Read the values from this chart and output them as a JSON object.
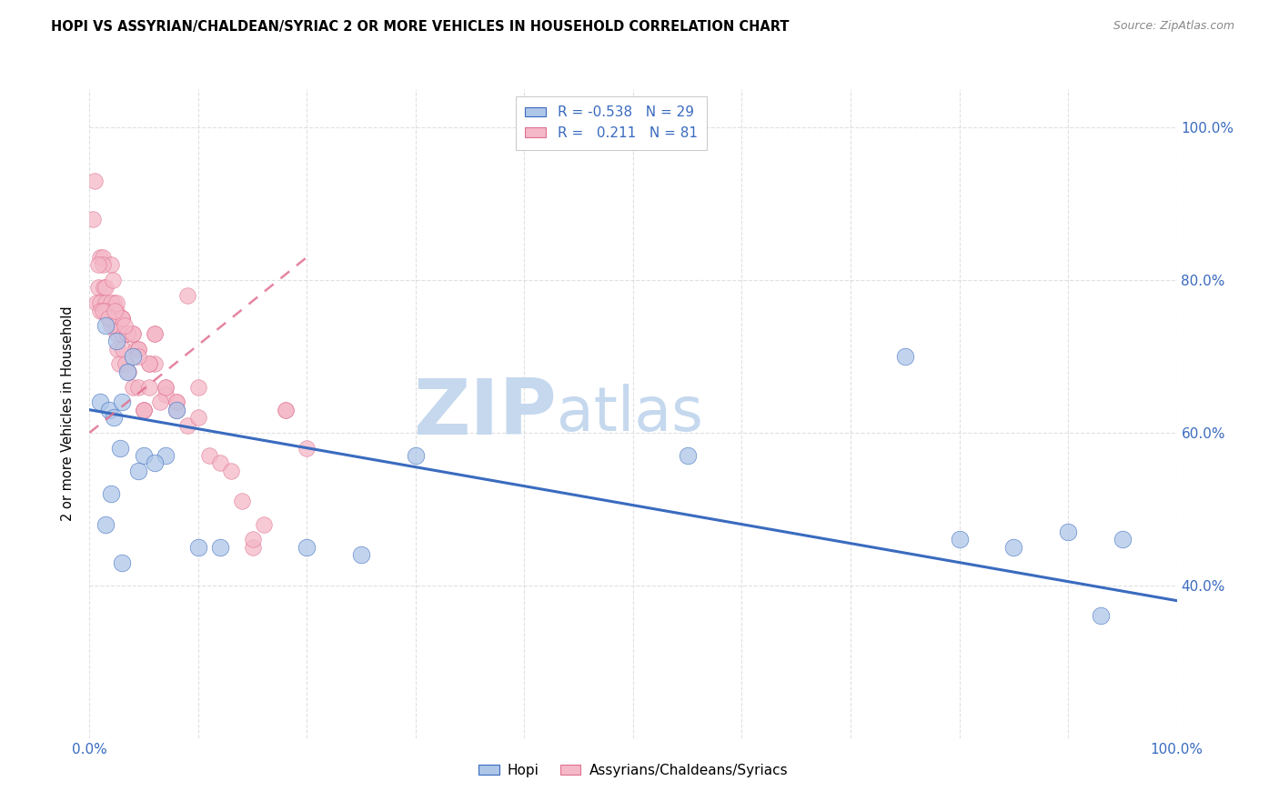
{
  "title": "HOPI VS ASSYRIAN/CHALDEAN/SYRIAC 2 OR MORE VEHICLES IN HOUSEHOLD CORRELATION CHART",
  "source_text": "Source: ZipAtlas.com",
  "ylabel": "2 or more Vehicles in Household",
  "xlim": [
    0,
    100
  ],
  "ylim": [
    20,
    105
  ],
  "legend_r_hopi": "-0.538",
  "legend_n_hopi": "29",
  "legend_r_assyrian": "0.211",
  "legend_n_assyrian": "81",
  "hopi_color": "#aec6e8",
  "assyrian_color": "#f4b8c8",
  "trend_hopi_color": "#3a6bbf",
  "trend_assyrian_color": "#e07090",
  "watermark_zip": "ZIP",
  "watermark_atlas": "atlas",
  "watermark_color_zip": "#c5d8ee",
  "watermark_color_atlas": "#c5d8ee",
  "hopi_trend_x0": 0,
  "hopi_trend_y0": 63,
  "hopi_trend_x1": 100,
  "hopi_trend_y1": 38,
  "assyrian_trend_x0": 0,
  "assyrian_trend_y0": 60,
  "assyrian_trend_x1": 20,
  "assyrian_trend_y1": 83,
  "hopi_x": [
    1.5,
    2.5,
    4.0,
    1.0,
    1.8,
    2.2,
    3.0,
    5.0,
    7.0,
    1.5,
    2.0,
    2.8,
    3.5,
    30.0,
    55.0,
    75.0,
    80.0,
    85.0,
    90.0,
    95.0,
    93.0,
    8.0,
    25.0,
    20.0,
    10.0,
    6.0,
    4.5,
    12.0,
    3.0
  ],
  "hopi_y": [
    74,
    72,
    70,
    64,
    63,
    62,
    64,
    57,
    57,
    48,
    52,
    58,
    68,
    57,
    57,
    70,
    46,
    45,
    47,
    46,
    36,
    63,
    44,
    45,
    45,
    56,
    55,
    45,
    43
  ],
  "assyrian_x": [
    0.5,
    0.8,
    1.0,
    1.2,
    1.3,
    1.5,
    1.6,
    1.8,
    2.0,
    2.1,
    2.2,
    2.3,
    2.5,
    2.6,
    2.7,
    3.0,
    3.1,
    3.3,
    3.5,
    3.6,
    4.0,
    4.2,
    4.5,
    5.0,
    5.5,
    6.0,
    7.0,
    8.0,
    9.0,
    2.0,
    2.5,
    3.0,
    3.5,
    4.0,
    4.5,
    5.0,
    5.5,
    6.0,
    7.0,
    8.0,
    9.0,
    10.0,
    11.0,
    12.0,
    13.0,
    14.0,
    15.0,
    16.0,
    18.0,
    20.0,
    0.3,
    0.6,
    1.0,
    1.2,
    1.5,
    2.0,
    2.5,
    3.0,
    3.5,
    4.0,
    4.5,
    5.0,
    5.5,
    6.0,
    7.0,
    8.0,
    1.0,
    1.5,
    2.0,
    2.5,
    3.0,
    0.8,
    1.2,
    1.7,
    2.3,
    3.2,
    4.5,
    6.5,
    10.0,
    15.0,
    18.0
  ],
  "assyrian_y": [
    93,
    79,
    83,
    83,
    79,
    79,
    76,
    75,
    82,
    80,
    77,
    74,
    73,
    71,
    69,
    73,
    71,
    69,
    73,
    68,
    66,
    71,
    66,
    63,
    66,
    69,
    66,
    64,
    78,
    76,
    74,
    75,
    73,
    73,
    71,
    63,
    69,
    73,
    65,
    63,
    61,
    62,
    57,
    56,
    55,
    51,
    45,
    48,
    63,
    58,
    88,
    77,
    77,
    82,
    77,
    77,
    76,
    75,
    73,
    73,
    71,
    63,
    69,
    73,
    66,
    64,
    76,
    76,
    74,
    77,
    75,
    82,
    76,
    75,
    76,
    74,
    70,
    64,
    66,
    46,
    63
  ]
}
